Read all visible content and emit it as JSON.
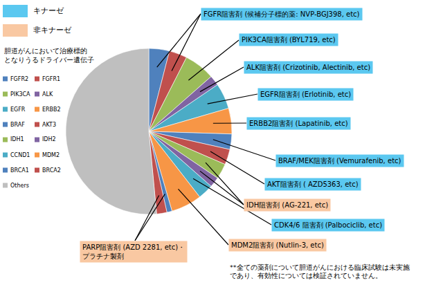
{
  "chart_data": {
    "type": "pie",
    "title": "胆道がんにおいて治療標的\nとなりうるドライバー遺伝子",
    "categories": [
      "FGFR2",
      "FGFR1",
      "PIK3CA",
      "ALK",
      "EGFR",
      "ERBB2",
      "BRAF",
      "AKT3",
      "IDH1",
      "IDH2",
      "CCND1",
      "MDM2",
      "BRCA1",
      "BRCA2",
      "Others"
    ],
    "values": [
      4,
      3.5,
      6,
      2,
      5,
      5,
      3,
      3,
      3,
      2,
      3,
      6,
      1,
      2,
      51.5
    ],
    "colors": [
      "#4F81BD",
      "#C0504D",
      "#9BBB59",
      "#8064A2",
      "#4BACC6",
      "#F79646",
      "#4F81BD",
      "#C0504D",
      "#9BBB59",
      "#8064A2",
      "#4BACC6",
      "#F79646",
      "#4F81BD",
      "#C0504D",
      "#BFBFBF"
    ],
    "legend": "left",
    "key": [
      {
        "name": "キナーゼ",
        "color": "#5BC8F0"
      },
      {
        "name": "非キナーゼ",
        "color": "#F9C8A2"
      }
    ],
    "annotations": [
      {
        "text": "FGFR阻害剤 (候補分子標的薬: NVP-BGJ398, etc)",
        "targets": [
          "FGFR2",
          "FGFR1"
        ],
        "color": "#5BC8F0"
      },
      {
        "text": "PIK3CA阻害剤 (BYL719, etc)",
        "targets": [
          "PIK3CA"
        ],
        "color": "#5BC8F0"
      },
      {
        "text": "ALK阻害剤 (Crizotinib, Alectinib, etc)",
        "targets": [
          "ALK"
        ],
        "color": "#5BC8F0"
      },
      {
        "text": "EGFR阻害剤 (Erlotinib, etc)",
        "targets": [
          "EGFR"
        ],
        "color": "#5BC8F0"
      },
      {
        "text": "ERBB2阻害剤 (Lapatinib, etc)",
        "targets": [
          "ERBB2"
        ],
        "color": "#5BC8F0"
      },
      {
        "text": "BRAF/MEK阻害剤 (Vemurafenib, etc)",
        "targets": [
          "BRAF"
        ],
        "color": "#5BC8F0"
      },
      {
        "text": "AKT阻害剤 ( AZD5363, etc)",
        "targets": [
          "AKT3"
        ],
        "color": "#5BC8F0"
      },
      {
        "text": "IDH阻害剤 (AG-221, etc)",
        "targets": [
          "IDH1",
          "IDH2"
        ],
        "color": "#F9C8A2"
      },
      {
        "text": "CDK4/6 阻害剤 (Palbociclib, etc)",
        "targets": [
          "CCND1"
        ],
        "color": "#5BC8F0"
      },
      {
        "text": "MDM2阻害剤 (Nutlin-3, etc)",
        "targets": [
          "MDM2"
        ],
        "color": "#F9C8A2"
      },
      {
        "text": "PARP阻害剤 (AZD 2281, etc)・\nプラチナ製剤",
        "targets": [
          "BRCA1",
          "BRCA2"
        ],
        "color": "#F9C8A2"
      }
    ],
    "note": "**全ての薬剤について胆道がんにおける臨床試験は未実施\nであり、有効性については検証されていません。"
  }
}
